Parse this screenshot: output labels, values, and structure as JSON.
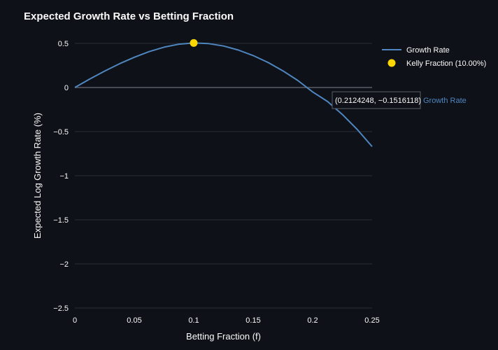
{
  "chart_data": {
    "type": "line",
    "title": "Expected Growth Rate vs Betting Fraction",
    "xlabel": "Betting Fraction (f)",
    "ylabel": "Expected Log Growth Rate (%)",
    "xlim": [
      0,
      0.25
    ],
    "ylim": [
      -2.5,
      0.55
    ],
    "x_ticks": [
      0,
      0.05,
      0.1,
      0.15,
      0.2,
      0.25
    ],
    "x_tick_labels": [
      "0",
      "0.05",
      "0.1",
      "0.15",
      "0.2",
      "0.25"
    ],
    "y_ticks": [
      0.5,
      0,
      -0.5,
      -1,
      -1.5,
      -2,
      -2.5
    ],
    "y_tick_labels": [
      "0.5",
      "0",
      "−0.5",
      "−1",
      "−1.5",
      "−2",
      "−2.5"
    ],
    "grid": true,
    "legend_position": "top-right",
    "series": [
      {
        "name": "Growth Rate",
        "color": "#4f86c0",
        "x": [
          0,
          0.0125,
          0.025,
          0.0375,
          0.05,
          0.0625,
          0.075,
          0.0875,
          0.1,
          0.1125,
          0.125,
          0.1375,
          0.15,
          0.1625,
          0.175,
          0.1875,
          0.2,
          0.2125,
          0.225,
          0.2375,
          0.25
        ],
        "y": [
          0,
          0.096,
          0.186,
          0.269,
          0.343,
          0.407,
          0.457,
          0.491,
          0.505,
          0.498,
          0.471,
          0.425,
          0.362,
          0.283,
          0.189,
          0.079,
          -0.05,
          -0.159,
          -0.306,
          -0.476,
          -0.67
        ]
      },
      {
        "name": "Kelly Fraction (10.00%)",
        "type": "marker",
        "color": "#ffd700",
        "x": [
          0.1
        ],
        "y": [
          0.505
        ]
      }
    ],
    "hover": {
      "text": "(0.2124248, −0.1516118)",
      "series_name": "Growth Rate",
      "x": 0.2124248,
      "y": -0.1516118
    }
  }
}
